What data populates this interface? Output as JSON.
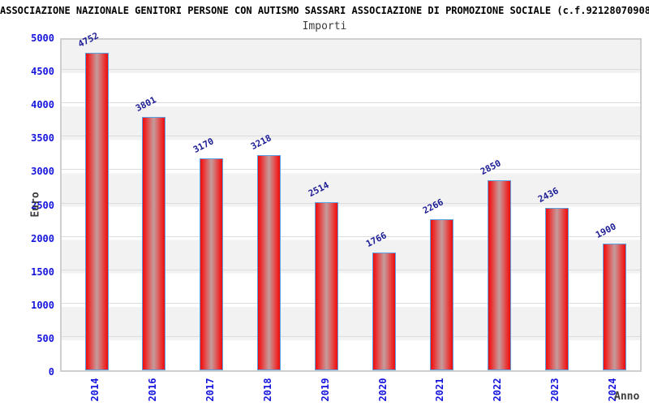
{
  "title": "ASSOCIAZIONE NAZIONALE GENITORI PERSONE CON AUTISMO SASSARI ASSOCIAZIONE DI PROMOZIONE SOCIALE (c.f.92128070908)",
  "subtitle": "Importi",
  "chart_data": {
    "type": "bar",
    "title": "Importi",
    "categories": [
      "2014",
      "2016",
      "2017",
      "2018",
      "2019",
      "2020",
      "2021",
      "2022",
      "2023",
      "2024"
    ],
    "values": [
      4752,
      3801,
      3170,
      3218,
      2514,
      1766,
      2266,
      2850,
      2436,
      1900
    ],
    "xlabel": "Anno",
    "ylabel": "Euro",
    "ylim": [
      0,
      5000
    ],
    "ytick_step": 500,
    "yticks": [
      0,
      500,
      1000,
      1500,
      2000,
      2500,
      3000,
      3500,
      4000,
      4500,
      5000
    ],
    "legend": false,
    "grid": "horizontal gridlines every 500 with alternating gray/white 500-unit bands",
    "data_labels": "rotated above each bar"
  },
  "colors": {
    "bar_fill_edge": "#e81010",
    "bar_fill_highlight": "#c59c9c",
    "bar_border": "#5aa2e4",
    "tick_label": "#1414dd",
    "value_label": "#1c1c96",
    "axis_label": "#3c3c3c",
    "band_gray": "#f2f2f2",
    "band_white": "#ffffff",
    "gridline": "#dcdcdc",
    "plot_frame": "#cfcfcf",
    "title_color": "#000000"
  }
}
